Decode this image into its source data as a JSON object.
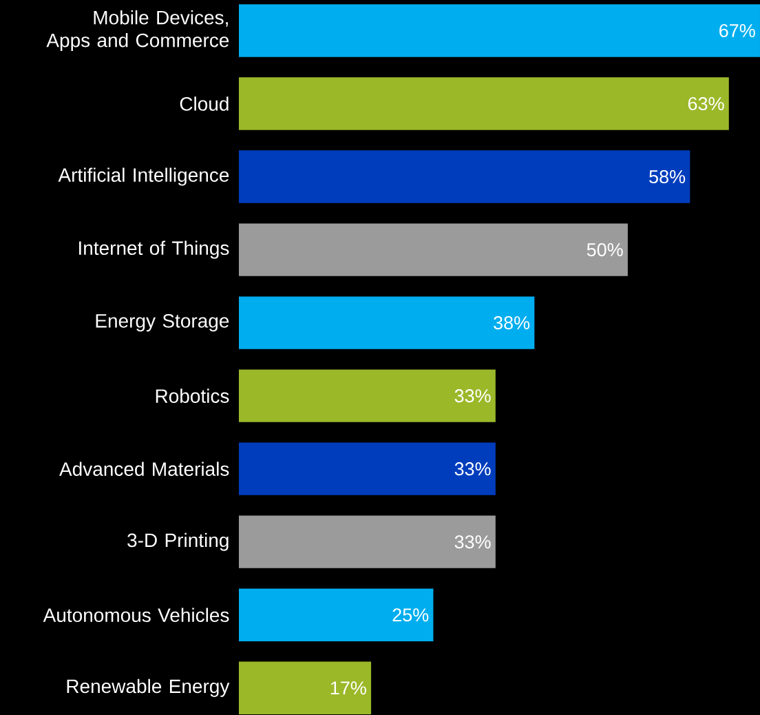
{
  "chart_data": {
    "type": "bar",
    "orientation": "horizontal",
    "categories": [
      "Mobile Devices, Apps and Commerce",
      "Cloud",
      "Artificial Intelligence",
      "Internet of Things",
      "Energy Storage",
      "Robotics",
      "Advanced Materials",
      "3-D Printing",
      "Autonomous Vehicles",
      "Renewable Energy"
    ],
    "values": [
      67,
      63,
      58,
      50,
      38,
      33,
      33,
      33,
      25,
      17
    ],
    "value_labels": [
      "67%",
      "63%",
      "58%",
      "50%",
      "38%",
      "33%",
      "33%",
      "33%",
      "25%",
      "17%"
    ],
    "colors": [
      "#00aeef",
      "#9bb829",
      "#003dbd",
      "#9b9b9b",
      "#00aeef",
      "#9bb829",
      "#003dbd",
      "#9b9b9b",
      "#00aeef",
      "#9bb829"
    ]
  }
}
